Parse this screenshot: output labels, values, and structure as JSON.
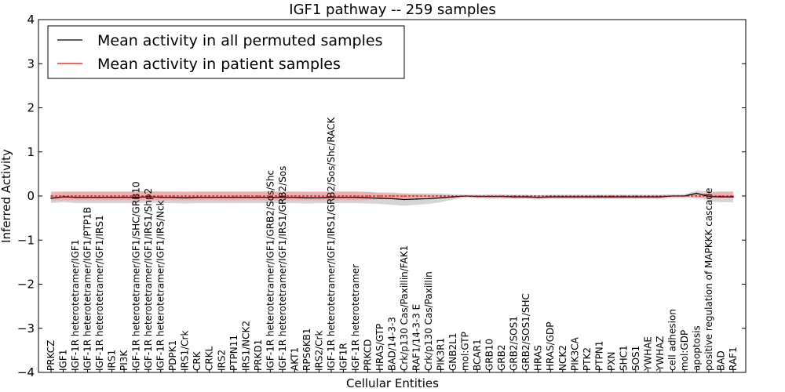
{
  "chart_data": {
    "type": "line",
    "title": "IGF1 pathway -- 259 samples",
    "xlabel": "Cellular Entities",
    "ylabel": "Inferred Activity",
    "ylim": [
      -4,
      4
    ],
    "yticks": [
      -4,
      -3,
      -2,
      -1,
      0,
      1,
      2,
      3,
      4
    ],
    "ytick_labels": [
      "−4",
      "−3",
      "−2",
      "−1",
      "0",
      "1",
      "2",
      "3",
      "4"
    ],
    "grid": false,
    "legend_position": "top-left",
    "categories": [
      "PRKCZ",
      "IGF1",
      "IGF-1R heterotetramer/IGF1",
      "IGF-1R heterotetramer/IGF1/PTP1B",
      "IGF-1R heterotetramer/IGF1/IRS1",
      "IRS1",
      "PI3K",
      "IGF-1R heterotetramer/IGF1/SHC/GRB10",
      "IGF-1R heterotetramer/IGF1/IRS1/Shp2",
      "IGF-1R heterotetramer/IGF1/IRS/Nck",
      "PDPK1",
      "IRS1/Crk",
      "CRK",
      "CRKL",
      "IRS2",
      "PTPN11",
      "IRS1/NCK2",
      "PRKD1",
      "IGF-1R heterotetramer/IGF1/GRB2/Sos/Shc",
      "IGF-1R heterotetramer/IGF1/IRS1/GRB2/Sos",
      "AKT1",
      "RPS6KB1",
      "IRS2/Crk",
      "IGF-1R heterotetramer/IGF1/IRS1/GRB2/Sos/Shc/RACK",
      "IGF1R",
      "IGF-1R heterotetramer",
      "PRKCD",
      "HRAS/GTP",
      "BAD/14-3-3",
      "Crk/p130 Cas/Paxillin/FAK1",
      "RAF1/14-3-3 E",
      "Crk/p130 Cas/Paxillin",
      "PIK3R1",
      "GNB2L1",
      "mol:GTP",
      "BCAR1",
      "GRB10",
      "GRB2",
      "GRB2/SOS1",
      "GRB2/SOS1/SHC",
      "HRAS",
      "HRAS/GDP",
      "NCK2",
      "PIK3CA",
      "PTK2",
      "PTPN1",
      "PXN",
      "SHC1",
      "SOS1",
      "YWHAE",
      "YWHAZ",
      "cell adhesion",
      "mol:GDP",
      "apoptosis",
      "positive regulation of MAPKKK cascade",
      "BAD",
      "RAF1"
    ],
    "series": [
      {
        "name": "Mean activity in all permuted samples",
        "color": "#000000",
        "style": "solid",
        "band_color": "#bfbfbf",
        "values": [
          -0.05,
          -0.02,
          -0.03,
          -0.03,
          -0.03,
          -0.03,
          -0.03,
          -0.03,
          -0.02,
          -0.03,
          -0.03,
          -0.04,
          -0.03,
          -0.03,
          -0.03,
          -0.03,
          -0.03,
          -0.03,
          -0.03,
          -0.03,
          -0.03,
          -0.04,
          -0.04,
          -0.03,
          -0.03,
          -0.03,
          -0.04,
          -0.05,
          -0.06,
          -0.08,
          -0.07,
          -0.06,
          -0.04,
          -0.02,
          0.0,
          -0.01,
          -0.01,
          -0.01,
          -0.02,
          -0.02,
          -0.03,
          -0.02,
          -0.02,
          -0.02,
          -0.02,
          -0.02,
          -0.02,
          -0.02,
          -0.02,
          -0.02,
          -0.02,
          0.0,
          0.0,
          0.06,
          -0.01,
          -0.02,
          -0.02
        ],
        "lower": [
          -0.16,
          -0.14,
          -0.16,
          -0.16,
          -0.16,
          -0.16,
          -0.16,
          -0.16,
          -0.15,
          -0.16,
          -0.16,
          -0.17,
          -0.16,
          -0.16,
          -0.16,
          -0.16,
          -0.16,
          -0.16,
          -0.16,
          -0.16,
          -0.16,
          -0.17,
          -0.16,
          -0.16,
          -0.16,
          -0.16,
          -0.17,
          -0.18,
          -0.2,
          -0.22,
          -0.2,
          -0.18,
          -0.14,
          -0.08,
          -0.03,
          -0.05,
          -0.06,
          -0.06,
          -0.07,
          -0.07,
          -0.08,
          -0.07,
          -0.07,
          -0.07,
          -0.07,
          -0.07,
          -0.07,
          -0.07,
          -0.07,
          -0.07,
          -0.07,
          -0.04,
          -0.04,
          0.0,
          -0.12,
          -0.14,
          -0.14
        ],
        "upper": [
          0.06,
          0.1,
          0.1,
          0.1,
          0.1,
          0.1,
          0.1,
          0.1,
          0.11,
          0.1,
          0.1,
          0.09,
          0.1,
          0.1,
          0.1,
          0.1,
          0.1,
          0.1,
          0.1,
          0.1,
          0.1,
          0.09,
          0.08,
          0.1,
          0.1,
          0.1,
          0.09,
          0.08,
          0.08,
          0.06,
          0.06,
          0.06,
          0.06,
          0.04,
          0.03,
          0.03,
          0.04,
          0.04,
          0.03,
          0.03,
          0.02,
          0.03,
          0.03,
          0.03,
          0.03,
          0.03,
          0.03,
          0.03,
          0.03,
          0.03,
          0.03,
          0.04,
          0.04,
          0.12,
          0.1,
          0.1,
          0.1
        ]
      },
      {
        "name": "Mean activity in patient samples",
        "color": "#ff0000",
        "style": "solid",
        "band_color": "#f4a3a3",
        "values": [
          0.0,
          0.0,
          0.0,
          0.0,
          0.0,
          0.0,
          0.0,
          0.0,
          0.0,
          0.0,
          0.0,
          0.0,
          0.0,
          0.0,
          0.0,
          0.0,
          0.0,
          0.0,
          0.0,
          0.0,
          0.0,
          0.0,
          0.0,
          0.0,
          0.0,
          0.0,
          0.0,
          0.0,
          0.0,
          0.0,
          0.0,
          0.0,
          0.0,
          0.0,
          0.0,
          0.0,
          0.0,
          0.0,
          0.0,
          0.0,
          0.0,
          0.0,
          0.0,
          0.0,
          0.0,
          0.0,
          0.0,
          0.0,
          0.0,
          0.0,
          0.0,
          0.0,
          0.0,
          0.0,
          0.0,
          0.0,
          0.0
        ],
        "lower": [
          -0.1,
          -0.1,
          -0.1,
          -0.1,
          -0.1,
          -0.1,
          -0.1,
          -0.1,
          -0.1,
          -0.1,
          -0.1,
          -0.1,
          -0.1,
          -0.1,
          -0.1,
          -0.1,
          -0.1,
          -0.1,
          -0.1,
          -0.1,
          -0.1,
          -0.1,
          -0.1,
          -0.1,
          -0.1,
          -0.1,
          -0.09,
          -0.07,
          -0.06,
          -0.05,
          -0.04,
          -0.03,
          -0.02,
          -0.01,
          -0.01,
          -0.01,
          -0.01,
          -0.01,
          -0.01,
          -0.01,
          -0.01,
          -0.01,
          -0.01,
          -0.01,
          -0.01,
          -0.01,
          -0.01,
          -0.01,
          -0.01,
          -0.01,
          -0.01,
          -0.01,
          -0.01,
          -0.05,
          -0.04,
          -0.04,
          -0.04
        ],
        "upper": [
          0.1,
          0.1,
          0.1,
          0.1,
          0.1,
          0.1,
          0.1,
          0.1,
          0.1,
          0.1,
          0.1,
          0.1,
          0.1,
          0.1,
          0.1,
          0.1,
          0.1,
          0.1,
          0.1,
          0.1,
          0.1,
          0.1,
          0.1,
          0.1,
          0.1,
          0.1,
          0.09,
          0.07,
          0.06,
          0.05,
          0.04,
          0.03,
          0.02,
          0.01,
          0.01,
          0.01,
          0.01,
          0.01,
          0.01,
          0.01,
          0.01,
          0.01,
          0.01,
          0.01,
          0.01,
          0.01,
          0.01,
          0.01,
          0.01,
          0.01,
          0.01,
          0.01,
          0.01,
          0.05,
          0.08,
          0.1,
          0.1
        ]
      }
    ]
  }
}
